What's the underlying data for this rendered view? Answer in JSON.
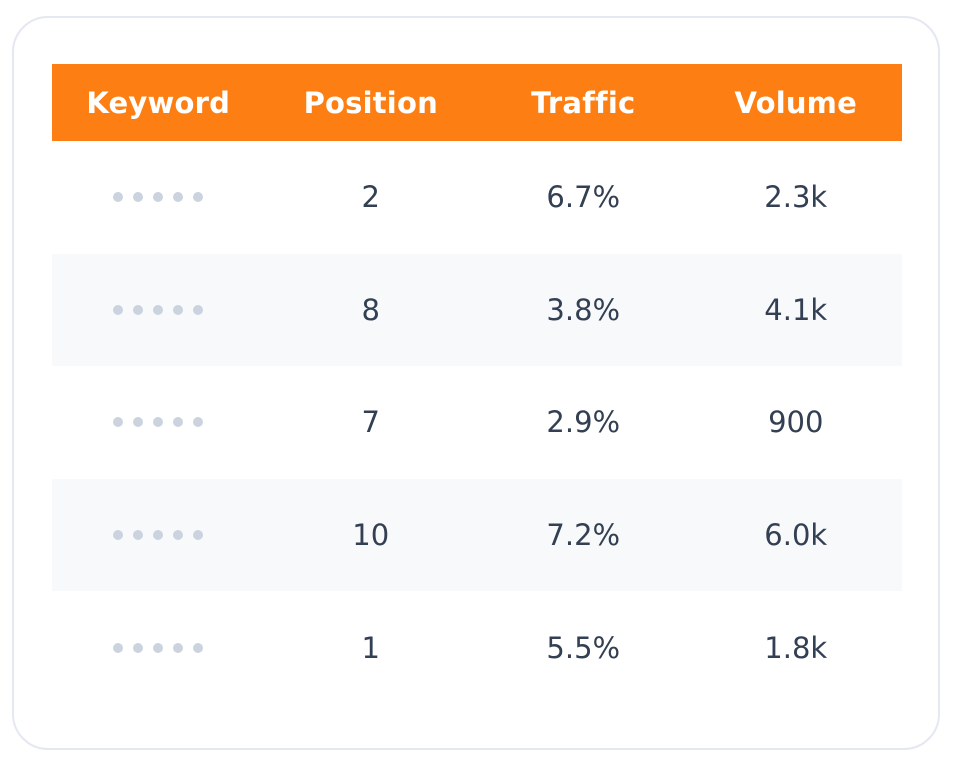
{
  "table": {
    "headers": {
      "keyword": "Keyword",
      "position": "Position",
      "traffic": "Traffic",
      "volume": "Volume"
    },
    "rows": [
      {
        "keyword": "•••••",
        "position": "2",
        "traffic": "6.7%",
        "volume": "2.3k"
      },
      {
        "keyword": "•••••",
        "position": "8",
        "traffic": "3.8%",
        "volume": "4.1k"
      },
      {
        "keyword": "•••••",
        "position": "7",
        "traffic": "2.9%",
        "volume": "900"
      },
      {
        "keyword": "•••••",
        "position": "10",
        "traffic": "7.2%",
        "volume": "6.0k"
      },
      {
        "keyword": "•••••",
        "position": "1",
        "traffic": "5.5%",
        "volume": "1.8k"
      }
    ]
  },
  "colors": {
    "header_background": "#fd7f13",
    "header_text": "#ffffff",
    "body_text": "#333f52",
    "alt_row_background": "#f7f9fb",
    "masked_dots": "#cbd3df",
    "card_border": "#e4e8f0"
  }
}
